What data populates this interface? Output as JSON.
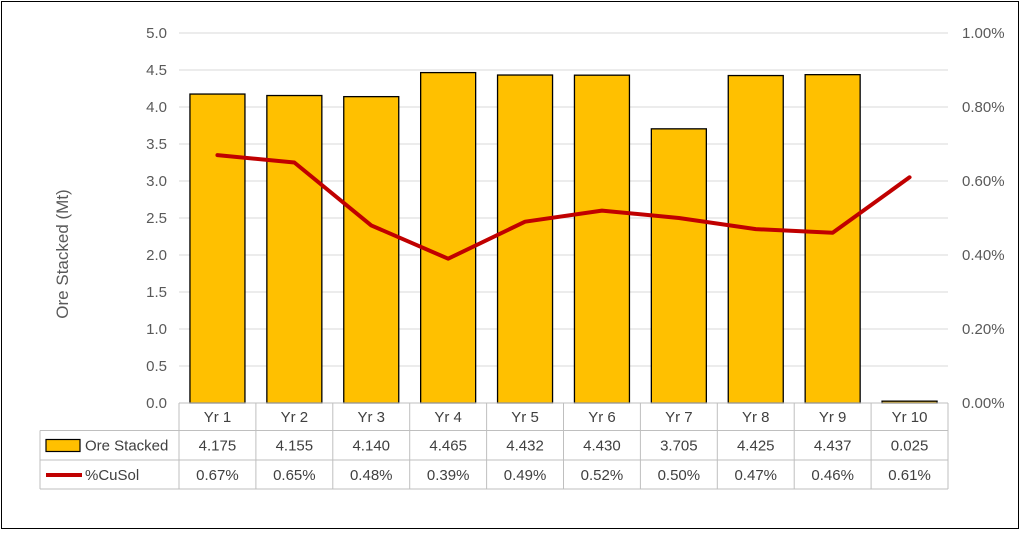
{
  "chart_data": {
    "type": "bar",
    "ylabel": "Ore Stacked (Mt)",
    "categories": [
      "Yr 1",
      "Yr 2",
      "Yr 3",
      "Yr 4",
      "Yr 5",
      "Yr 6",
      "Yr 7",
      "Yr 8",
      "Yr 9",
      "Yr 10"
    ],
    "ylim": [
      0,
      5.0
    ],
    "y_ticks": [
      "0.0",
      "0.5",
      "1.0",
      "1.5",
      "2.0",
      "2.5",
      "3.0",
      "3.5",
      "4.0",
      "4.5",
      "5.0"
    ],
    "y2lim": [
      0,
      0.01
    ],
    "y2_ticks": [
      "0.00%",
      "0.20%",
      "0.40%",
      "0.60%",
      "0.80%",
      "1.00%"
    ],
    "grid": true,
    "legend": "data-table",
    "series": [
      {
        "name": "Ore Stacked",
        "type": "bar",
        "axis": "left",
        "color": "#FFC000",
        "values": [
          4.175,
          4.155,
          4.14,
          4.465,
          4.432,
          4.43,
          3.705,
          4.425,
          4.437,
          0.025
        ],
        "labels": [
          "4.175",
          "4.155",
          "4.140",
          "4.465",
          "4.432",
          "4.430",
          "3.705",
          "4.425",
          "4.437",
          "0.025"
        ]
      },
      {
        "name": "%CuSol",
        "type": "line",
        "axis": "right",
        "color": "#C00000",
        "values": [
          0.0067,
          0.0065,
          0.0048,
          0.0039,
          0.0049,
          0.0052,
          0.005,
          0.0047,
          0.0046,
          0.0061
        ],
        "labels": [
          "0.67%",
          "0.65%",
          "0.48%",
          "0.39%",
          "0.49%",
          "0.52%",
          "0.50%",
          "0.47%",
          "0.46%",
          "0.61%"
        ]
      }
    ]
  }
}
